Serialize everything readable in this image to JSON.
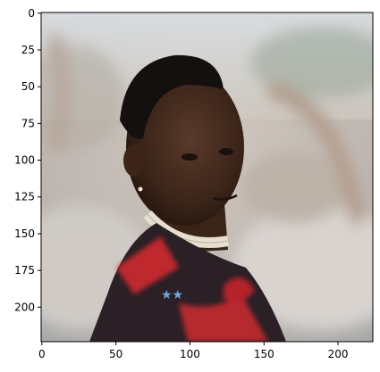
{
  "image": {
    "x_range": [
      0,
      224
    ],
    "y_range": [
      0,
      224
    ],
    "x_ticks": [
      0,
      50,
      100,
      150,
      200
    ],
    "y_ticks": [
      0,
      25,
      50,
      75,
      100,
      125,
      150,
      175,
      200
    ],
    "x_tick_labels": [
      "0",
      "50",
      "100",
      "150",
      "200"
    ],
    "y_tick_labels": [
      "0",
      "25",
      "50",
      "75",
      "100",
      "125",
      "150",
      "175",
      "200"
    ],
    "content": "portrait-photo",
    "colors": {
      "background": "#c9c2ba",
      "sky": "#d8dde0",
      "skin": "#3a2418",
      "garment": "#2a2026",
      "garment-pattern": "#d92a2e",
      "necklace": "#e6dfcf"
    }
  }
}
